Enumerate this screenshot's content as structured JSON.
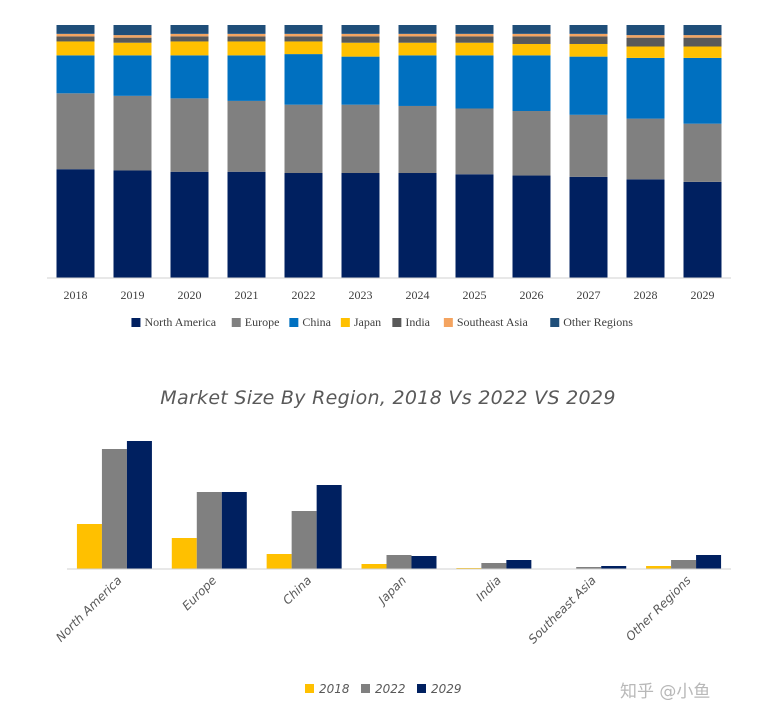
{
  "chart_data": [
    {
      "type": "bar",
      "stacked": true,
      "normalized": true,
      "categories": [
        "2018",
        "2019",
        "2020",
        "2021",
        "2022",
        "2023",
        "2024",
        "2025",
        "2026",
        "2027",
        "2028",
        "2029"
      ],
      "series": [
        {
          "name": "North America",
          "color": "#002060",
          "values": [
            43,
            42.5,
            42,
            42,
            41.5,
            41.5,
            41.5,
            41,
            40.5,
            40,
            39,
            38
          ]
        },
        {
          "name": "Europe",
          "color": "#808080",
          "values": [
            30,
            29.5,
            29,
            28,
            27,
            27,
            26.5,
            26,
            25.5,
            24.5,
            24,
            23
          ]
        },
        {
          "name": "China",
          "color": "#0070C0",
          "values": [
            15,
            16,
            17,
            18,
            20,
            19,
            20,
            21,
            22,
            23,
            24,
            26
          ]
        },
        {
          "name": "Japan",
          "color": "#FFC000",
          "values": [
            5.5,
            5,
            5.5,
            5.5,
            5,
            5.5,
            5,
            5,
            4.5,
            5,
            4.5,
            4.5
          ]
        },
        {
          "name": "India",
          "color": "#595959",
          "values": [
            2,
            2,
            2,
            2,
            2,
            2.5,
            2.5,
            2.5,
            3,
            3,
            3.5,
            3.5
          ]
        },
        {
          "name": "Southeast Asia",
          "color": "#F4A460",
          "values": [
            1,
            1,
            1,
            1,
            1,
            1,
            1,
            1,
            1,
            1,
            1,
            1
          ]
        },
        {
          "name": "Other Regions",
          "color": "#1F4E79",
          "values": [
            3.5,
            4,
            3.5,
            3.5,
            3.5,
            3.5,
            3.5,
            3.5,
            3.5,
            3.5,
            4,
            4
          ]
        }
      ],
      "ylim": [
        0,
        100
      ],
      "legend_position": "bottom",
      "grid": false
    },
    {
      "type": "bar",
      "title": "Market Size By Region, 2018 Vs 2022 VS 2029",
      "categories": [
        "North America",
        "Europe",
        "China",
        "Japan",
        "India",
        "Southeast Asia",
        "Other Regions"
      ],
      "series": [
        {
          "name": "2018",
          "color": "#FFC000",
          "values": [
            45,
            31,
            15,
            5,
            1,
            0,
            3
          ]
        },
        {
          "name": "2022",
          "color": "#808080",
          "values": [
            120,
            77,
            58,
            14,
            6,
            2,
            9
          ]
        },
        {
          "name": "2029",
          "color": "#002060",
          "values": [
            128,
            77,
            84,
            13,
            9,
            3,
            14
          ]
        }
      ],
      "ylim": [
        0,
        135
      ],
      "legend_position": "bottom",
      "grid": false
    }
  ],
  "watermark": "知乎 @小鱼"
}
